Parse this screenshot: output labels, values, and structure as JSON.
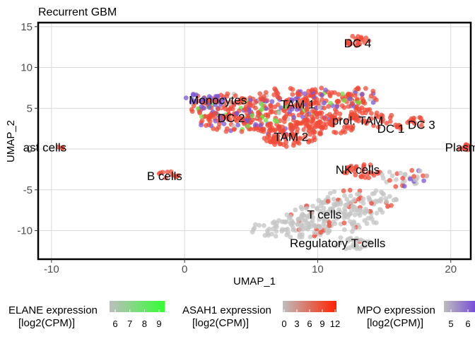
{
  "chart_data": {
    "type": "scatter",
    "title": "Recurrent GBM",
    "xlabel": "UMAP_1",
    "ylabel": "UMAP_2",
    "xlim": [
      -11,
      21.5
    ],
    "ylim": [
      -13.5,
      15.5
    ],
    "xticks": [
      -10,
      0,
      10,
      20
    ],
    "yticks": [
      -10,
      -5,
      0,
      5,
      10,
      15
    ],
    "grid": true,
    "clusters": [
      {
        "name": "Monocytes",
        "x": 2.5,
        "y": 6.0
      },
      {
        "name": "DC 2",
        "x": 3.5,
        "y": 3.8
      },
      {
        "name": "TAM 1",
        "x": 8.5,
        "y": 5.5
      },
      {
        "name": "TAM 2",
        "x": 8.0,
        "y": 1.5
      },
      {
        "name": "prol. TAM",
        "x": 13.0,
        "y": 3.5
      },
      {
        "name": "DC 1",
        "x": 15.5,
        "y": 2.5
      },
      {
        "name": "DC 3",
        "x": 17.8,
        "y": 3.0
      },
      {
        "name": "DC 4",
        "x": 13.0,
        "y": 13.0
      },
      {
        "name": "ast cells",
        "x": -10.5,
        "y": 0.2
      },
      {
        "name": "B cells",
        "x": -1.5,
        "y": -3.3
      },
      {
        "name": "Plasma B",
        "x": 21.5,
        "y": 0.2
      },
      {
        "name": "NK cells",
        "x": 13.0,
        "y": -2.5
      },
      {
        "name": "T cells",
        "x": 10.5,
        "y": -8.0
      },
      {
        "name": "Regulatory T cells",
        "x": 11.5,
        "y": -11.5
      }
    ],
    "legends": [
      {
        "title_line1": "ELANE expression",
        "title_line2": "[log2(CPM)]",
        "ticks": [
          "6",
          "7",
          "8",
          "9"
        ],
        "color_low": "#bdbdbd",
        "color_high": "#33ff33"
      },
      {
        "title_line1": "ASAH1 expression",
        "title_line2": "[log2(CPM)]",
        "ticks": [
          "0",
          "3",
          "6",
          "9",
          "12"
        ],
        "color_low": "#bdbdbd",
        "color_high": "#ff2200"
      },
      {
        "title_line1": "MPO expression",
        "title_line2": "[log2(CPM)]",
        "ticks": [
          "5",
          "6"
        ],
        "color_low": "#bdbdbd",
        "color_high": "#7a4fd6"
      }
    ],
    "colors": {
      "grey": "#c4c4c4",
      "red": "#f04a35",
      "purple": "#7a55d4",
      "green": "#6fde3e"
    }
  }
}
